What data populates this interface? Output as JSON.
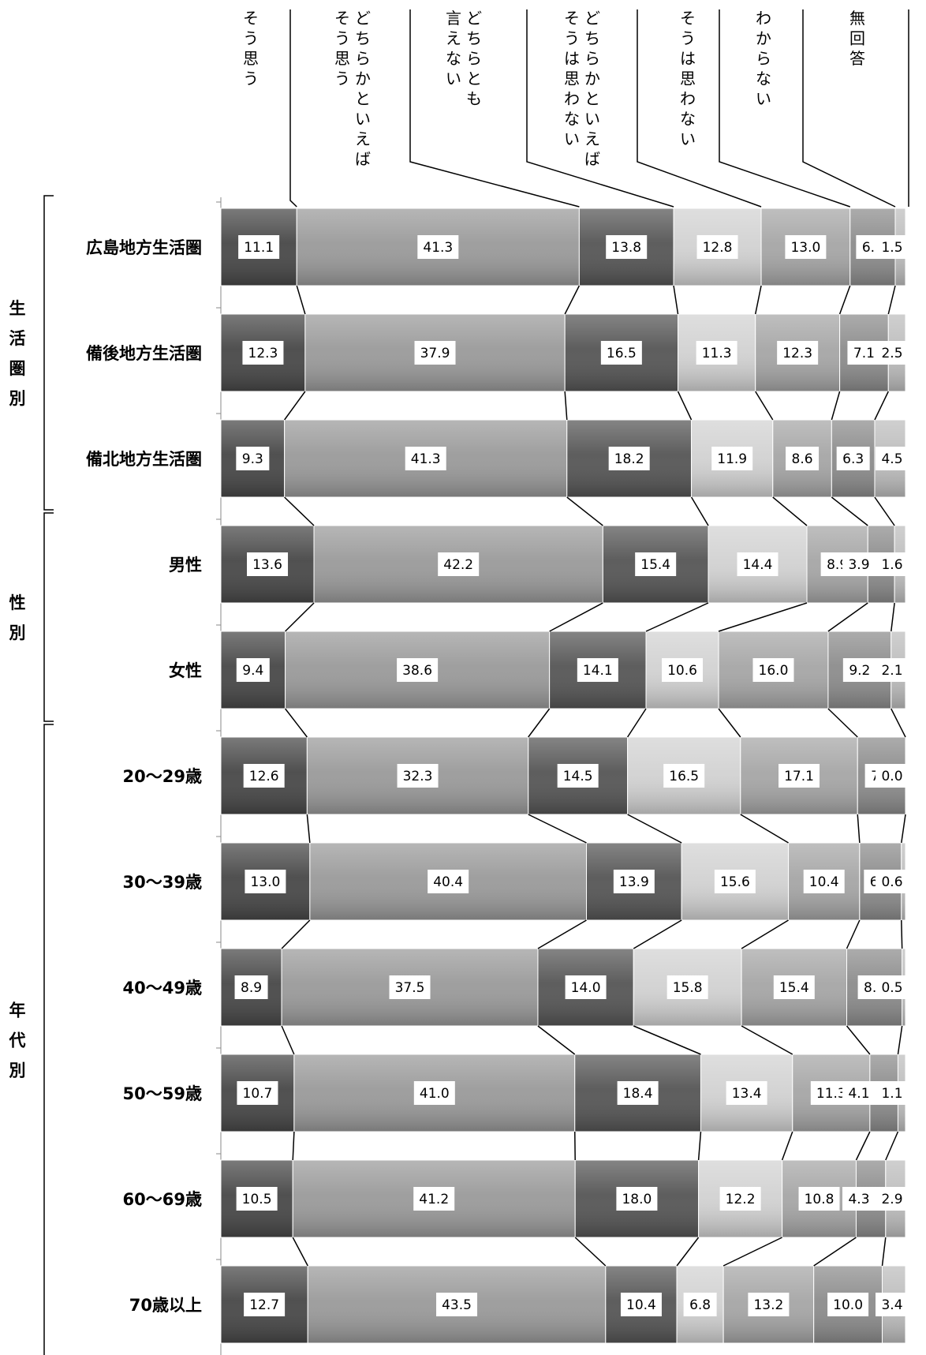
{
  "chart_data": {
    "type": "bar",
    "stacked": "100%",
    "orientation": "horizontal",
    "colors": [
      "#474747",
      "#9a9a9a",
      "#555555",
      "#d2d2d2",
      "#a6a6a6",
      "#8c8c8c",
      "#bdbdbd"
    ],
    "series": [
      {
        "name": "そう思う"
      },
      {
        "name": "どちらかといえばそう思う"
      },
      {
        "name": "どちらとも言えない"
      },
      {
        "name": "どちらかといえばそうは思わない"
      },
      {
        "name": "そうは思わない"
      },
      {
        "name": "わからない"
      },
      {
        "name": "無回答"
      }
    ],
    "header_lines": [
      [
        "そう思う"
      ],
      [
        "どちらかといえば",
        "そう思う"
      ],
      [
        "どちらとも",
        "言えない"
      ],
      [
        "どちらかといえば",
        "そうは思わない"
      ],
      [
        "そうは思わない"
      ],
      [
        "わからない"
      ],
      [
        "無回答"
      ]
    ],
    "groups": [
      {
        "label": "生活圏別",
        "rows": [
          0,
          1,
          2
        ]
      },
      {
        "label": "性別",
        "rows": [
          3,
          4
        ]
      },
      {
        "label": "年代別",
        "rows": [
          5,
          6,
          7,
          8,
          9,
          10
        ]
      }
    ],
    "categories": [
      "広島地方生活圏",
      "備後地方生活圏",
      "備北地方生活圏",
      "男性",
      "女性",
      "20～29歳",
      "30～39歳",
      "40～49歳",
      "50～59歳",
      "60～69歳",
      "70歳以上"
    ],
    "rows": [
      [
        11.1,
        41.3,
        13.8,
        12.8,
        13.0,
        6.6,
        1.5
      ],
      [
        12.3,
        37.9,
        16.5,
        11.3,
        12.3,
        7.1,
        2.5
      ],
      [
        9.3,
        41.3,
        18.2,
        11.9,
        8.6,
        6.3,
        4.5
      ],
      [
        13.6,
        42.2,
        15.4,
        14.4,
        8.9,
        3.9,
        1.6
      ],
      [
        9.4,
        38.6,
        14.1,
        10.6,
        16.0,
        9.2,
        2.1
      ],
      [
        12.6,
        32.3,
        14.5,
        16.5,
        17.1,
        7.0,
        0.0
      ],
      [
        13.0,
        40.4,
        13.9,
        15.6,
        10.4,
        6.1,
        0.6
      ],
      [
        8.9,
        37.5,
        14.0,
        15.8,
        15.4,
        8.1,
        0.5
      ],
      [
        10.7,
        41.0,
        18.4,
        13.4,
        11.3,
        4.1,
        1.1
      ],
      [
        10.5,
        41.2,
        18.0,
        12.2,
        10.8,
        4.3,
        2.9
      ],
      [
        12.7,
        43.5,
        10.4,
        6.8,
        13.2,
        10.0,
        3.4
      ]
    ]
  }
}
